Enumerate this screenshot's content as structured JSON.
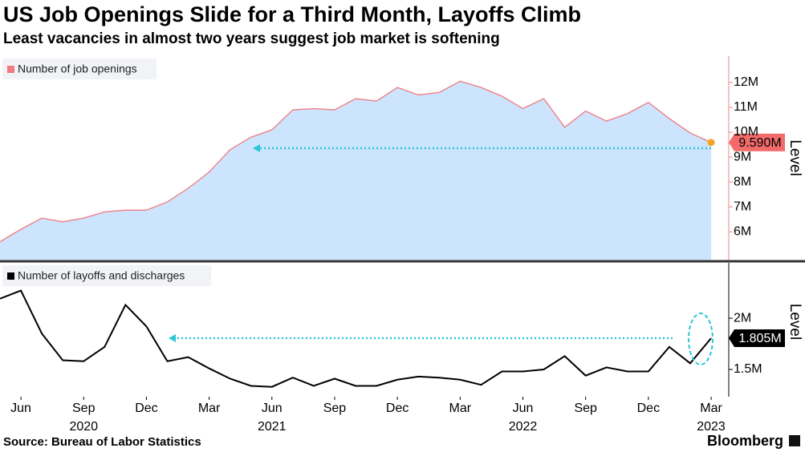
{
  "header": {
    "title": "US Job Openings Slide for a Third Month, Layoffs Climb",
    "subtitle": "Least vacancies in almost two years suggest job market is softening"
  },
  "footer": {
    "source": "Source: Bureau of Labor Statistics",
    "brand": "Bloomberg"
  },
  "chart_data": [
    {
      "type": "area",
      "legend": "top-left",
      "y_label": "Level",
      "x": [
        "2020-05",
        "2020-06",
        "2020-07",
        "2020-08",
        "2020-09",
        "2020-10",
        "2020-11",
        "2020-12",
        "2021-01",
        "2021-02",
        "2021-03",
        "2021-04",
        "2021-05",
        "2021-06",
        "2021-07",
        "2021-08",
        "2021-09",
        "2021-10",
        "2021-11",
        "2021-12",
        "2022-01",
        "2022-02",
        "2022-03",
        "2022-04",
        "2022-05",
        "2022-06",
        "2022-07",
        "2022-08",
        "2022-09",
        "2022-10",
        "2022-11",
        "2022-12",
        "2023-01",
        "2023-02",
        "2023-03"
      ],
      "series": [
        {
          "name": "Number of job openings",
          "color": "#f07a80",
          "fill": "#cce4fd",
          "values": [
            5.6,
            6.1,
            6.55,
            6.4,
            6.55,
            6.8,
            6.87,
            6.87,
            7.2,
            7.75,
            8.4,
            9.3,
            9.8,
            10.1,
            10.9,
            10.95,
            10.9,
            11.35,
            11.25,
            11.8,
            11.5,
            11.6,
            12.05,
            11.8,
            11.45,
            10.95,
            11.35,
            10.2,
            10.85,
            10.45,
            10.75,
            11.2,
            10.55,
            9.97,
            9.59
          ],
          "value_labels": [
            null,
            null,
            null,
            null,
            null,
            null,
            null,
            null,
            null,
            null,
            null,
            null,
            null,
            null,
            null,
            null,
            null,
            null,
            null,
            null,
            null,
            null,
            null,
            null,
            null,
            null,
            null,
            null,
            null,
            null,
            null,
            null,
            null,
            null,
            "9.590M"
          ]
        }
      ],
      "ylim": [
        4.88,
        13.06
      ],
      "yticks": [
        {
          "value": 6,
          "label": "6M"
        },
        {
          "value": 7,
          "label": "7M"
        },
        {
          "value": 8,
          "label": "8M"
        },
        {
          "value": 9,
          "label": "9M"
        },
        {
          "value": 10,
          "label": "10M"
        },
        {
          "value": 11,
          "label": "11M"
        },
        {
          "value": 12,
          "label": "12M"
        }
      ]
    },
    {
      "type": "line",
      "legend": "top-left",
      "y_label": "Level",
      "x": [
        "2020-05",
        "2020-06",
        "2020-07",
        "2020-08",
        "2020-09",
        "2020-10",
        "2020-11",
        "2020-12",
        "2021-01",
        "2021-02",
        "2021-03",
        "2021-04",
        "2021-05",
        "2021-06",
        "2021-07",
        "2021-08",
        "2021-09",
        "2021-10",
        "2021-11",
        "2021-12",
        "2022-01",
        "2022-02",
        "2022-03",
        "2022-04",
        "2022-05",
        "2022-06",
        "2022-07",
        "2022-08",
        "2022-09",
        "2022-10",
        "2022-11",
        "2022-12",
        "2023-01",
        "2023-02",
        "2023-03"
      ],
      "series": [
        {
          "name": "Number of layoffs and discharges",
          "color": "#000000",
          "values": [
            2.19,
            2.27,
            1.85,
            1.59,
            1.58,
            1.72,
            2.13,
            1.92,
            1.58,
            1.62,
            1.51,
            1.41,
            1.34,
            1.33,
            1.42,
            1.34,
            1.41,
            1.34,
            1.34,
            1.4,
            1.43,
            1.42,
            1.4,
            1.35,
            1.48,
            1.48,
            1.5,
            1.63,
            1.44,
            1.52,
            1.48,
            1.48,
            1.72,
            1.56,
            1.805
          ],
          "value_labels": [
            null,
            null,
            null,
            null,
            null,
            null,
            null,
            null,
            null,
            null,
            null,
            null,
            null,
            null,
            null,
            null,
            null,
            null,
            null,
            null,
            null,
            null,
            null,
            null,
            null,
            null,
            null,
            null,
            null,
            null,
            null,
            null,
            null,
            null,
            "1.805M"
          ]
        }
      ],
      "ylim": [
        1.234,
        2.54
      ],
      "yticks": [
        {
          "value": 1.5,
          "label": "1.5M"
        },
        {
          "value": 2,
          "label": "2M"
        }
      ],
      "xticks": [
        {
          "value": "2020-06",
          "label": "Jun"
        },
        {
          "value": "2020-09",
          "label": "Sep"
        },
        {
          "value": "2020-12",
          "label": "Dec"
        },
        {
          "value": "2021-03",
          "label": "Mar"
        },
        {
          "value": "2021-06",
          "label": "Jun"
        },
        {
          "value": "2021-09",
          "label": "Sep"
        },
        {
          "value": "2021-12",
          "label": "Dec"
        },
        {
          "value": "2022-03",
          "label": "Mar"
        },
        {
          "value": "2022-06",
          "label": "Jun"
        },
        {
          "value": "2022-09",
          "label": "Sep"
        },
        {
          "value": "2022-12",
          "label": "Dec"
        },
        {
          "value": "2023-03",
          "label": "Mar"
        }
      ],
      "year_labels": [
        {
          "value": "2020-09",
          "label": "2020"
        },
        {
          "value": "2021-06",
          "label": "2021"
        },
        {
          "value": "2022-06",
          "label": "2022"
        },
        {
          "value": "2023-03",
          "label": "2023"
        }
      ]
    }
  ]
}
